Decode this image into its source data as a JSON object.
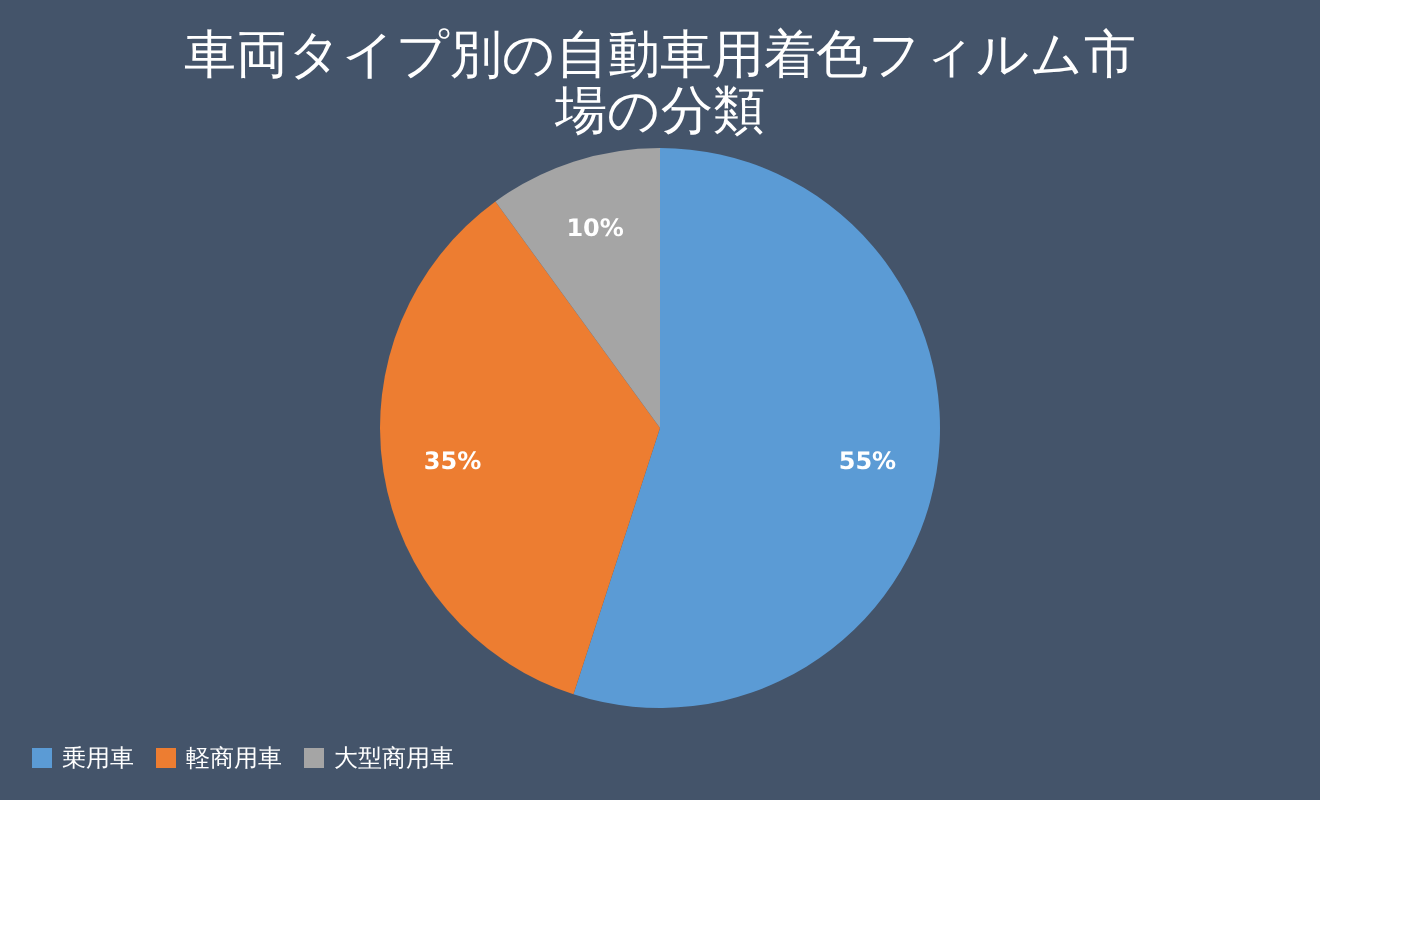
{
  "chart_data": {
    "type": "pie",
    "title": "車両タイプ別の自動車用着色フィルム市場の分類",
    "categories": [
      "乗用車",
      "軽商用車",
      "大型商用車"
    ],
    "values": [
      55,
      35,
      10
    ],
    "colors": [
      "#5b9bd5",
      "#ed7d31",
      "#a5a5a5"
    ],
    "value_labels": [
      "55%",
      "35%",
      "10%"
    ],
    "legend": "bottom"
  }
}
